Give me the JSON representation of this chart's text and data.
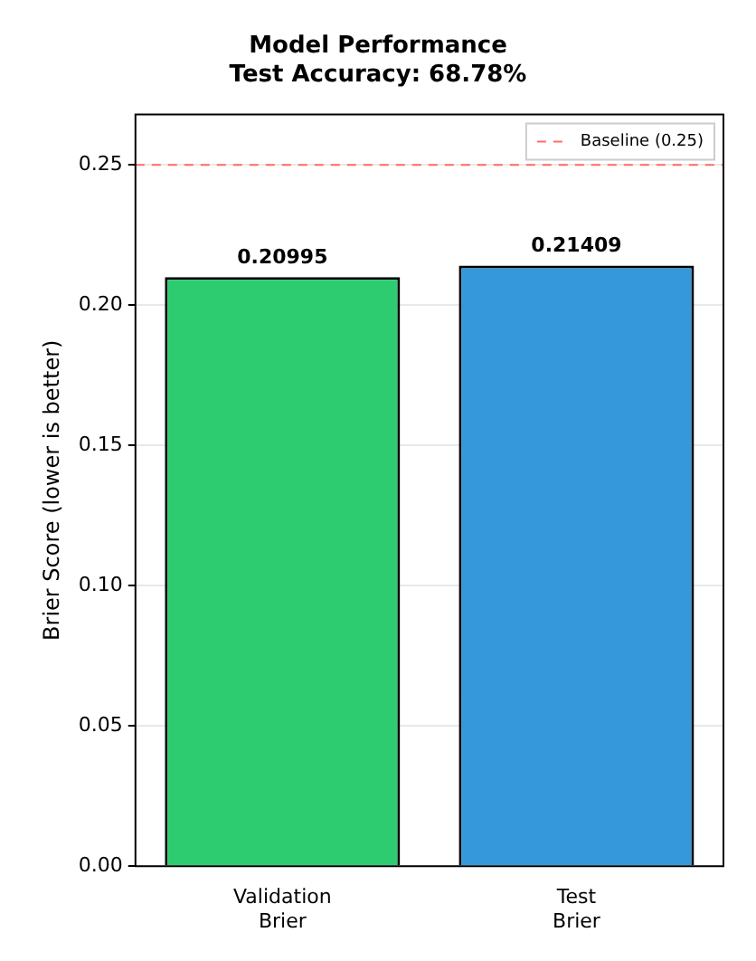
{
  "chart_data": {
    "type": "bar",
    "title": "Model Performance\nTest Accuracy: 68.78%",
    "ylabel": "Brier Score (lower is better)",
    "categories": [
      "Validation\nBrier",
      "Test\nBrier"
    ],
    "values": [
      0.20995,
      0.21409
    ],
    "colors": [
      "#2ecc71",
      "#3498db"
    ],
    "data_labels": true,
    "ylim": [
      0,
      0.268
    ],
    "yticks": [
      {
        "value": 0,
        "label": "0.00"
      },
      {
        "value": 0.05,
        "label": "0.05"
      },
      {
        "value": 0.1,
        "label": "0.10"
      },
      {
        "value": 0.15,
        "label": "0.15"
      },
      {
        "value": 0.2,
        "label": "0.20"
      },
      {
        "value": 0.25,
        "label": "0.25"
      }
    ],
    "grid": "y",
    "ref_lines": [
      {
        "axis": "y",
        "value": 0.25,
        "label": "Baseline (0.25)",
        "color": "#ff6b6b",
        "line_style": "dashed"
      }
    ],
    "legend": "top right"
  }
}
